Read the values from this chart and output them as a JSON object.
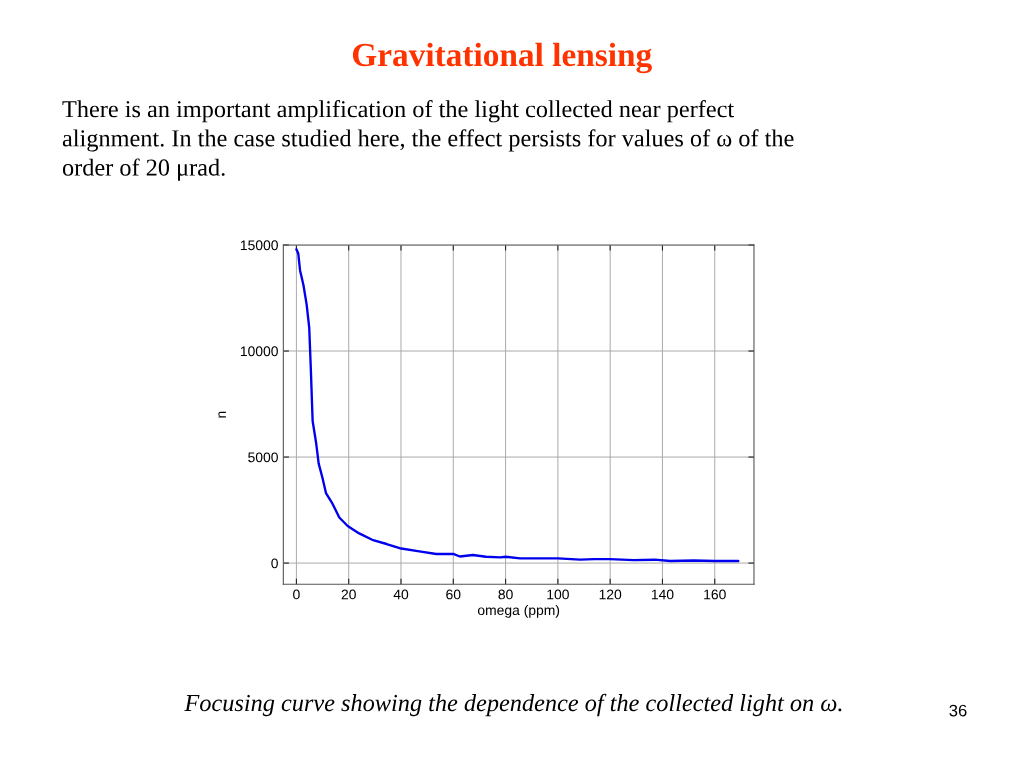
{
  "chart_data": {
    "type": "line",
    "title": "Gravitational lensing",
    "subtitle": "There is an important amplification of the light collected near perfect\nalignment. In the case studied here, the effect persists for values of ω of the\norder of 20 μrad.",
    "xlabel": "omega (ppm)",
    "ylabel": "n",
    "annotations": [
      "Focusing curve showing the dependence of the collected light on ω.",
      "36"
    ],
    "x": [
      0,
      0.7,
      1.4,
      2.7,
      3.9,
      4.9,
      5.5,
      6.2,
      7.5,
      8.5,
      10,
      11.3,
      13.8,
      16.4,
      19.6,
      24,
      29,
      34.5,
      39.5,
      47,
      53.5,
      60,
      62.5,
      67.5,
      72.5,
      78,
      80,
      85.5,
      96,
      100,
      108.5,
      114,
      120,
      129,
      137,
      143,
      152,
      160,
      169
    ],
    "series": [
      {
        "color": "#0000ee",
        "values": [
          14800,
          14600,
          13800,
          13100,
          12200,
          11100,
          9200,
          6700,
          5700,
          4700,
          4000,
          3300,
          2800,
          2150,
          1750,
          1400,
          1100,
          900,
          700,
          550,
          430,
          430,
          310,
          380,
          300,
          270,
          300,
          220,
          220,
          220,
          160,
          190,
          190,
          140,
          160,
          100,
          120,
          100,
          100
        ]
      }
    ],
    "xlim": [
      -5,
      175
    ],
    "ylim": [
      -1000,
      15000
    ],
    "xticks": [
      0,
      20,
      40,
      60,
      80,
      100,
      120,
      140,
      160
    ],
    "yticks": [
      0,
      5000,
      10000,
      15000
    ],
    "grid": true
  }
}
